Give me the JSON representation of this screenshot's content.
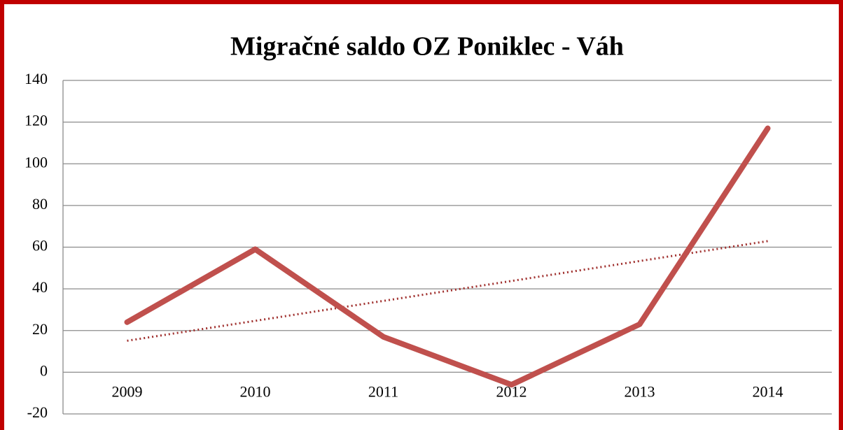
{
  "chart_data": {
    "type": "line",
    "title": "Migračné saldo OZ Poniklec - Váh",
    "categories": [
      "2009",
      "2010",
      "2011",
      "2012",
      "2013",
      "2014"
    ],
    "series": [
      {
        "color": "#c0504d",
        "values": [
          24,
          59,
          17,
          -6,
          23,
          117
        ]
      }
    ],
    "trendline": {
      "color": "#a0302e",
      "values": [
        15.1,
        62.9
      ]
    },
    "ylim": [
      -20,
      140
    ],
    "yticks": [
      -20,
      0,
      20,
      40,
      60,
      80,
      100,
      120,
      140
    ],
    "grid": true
  }
}
